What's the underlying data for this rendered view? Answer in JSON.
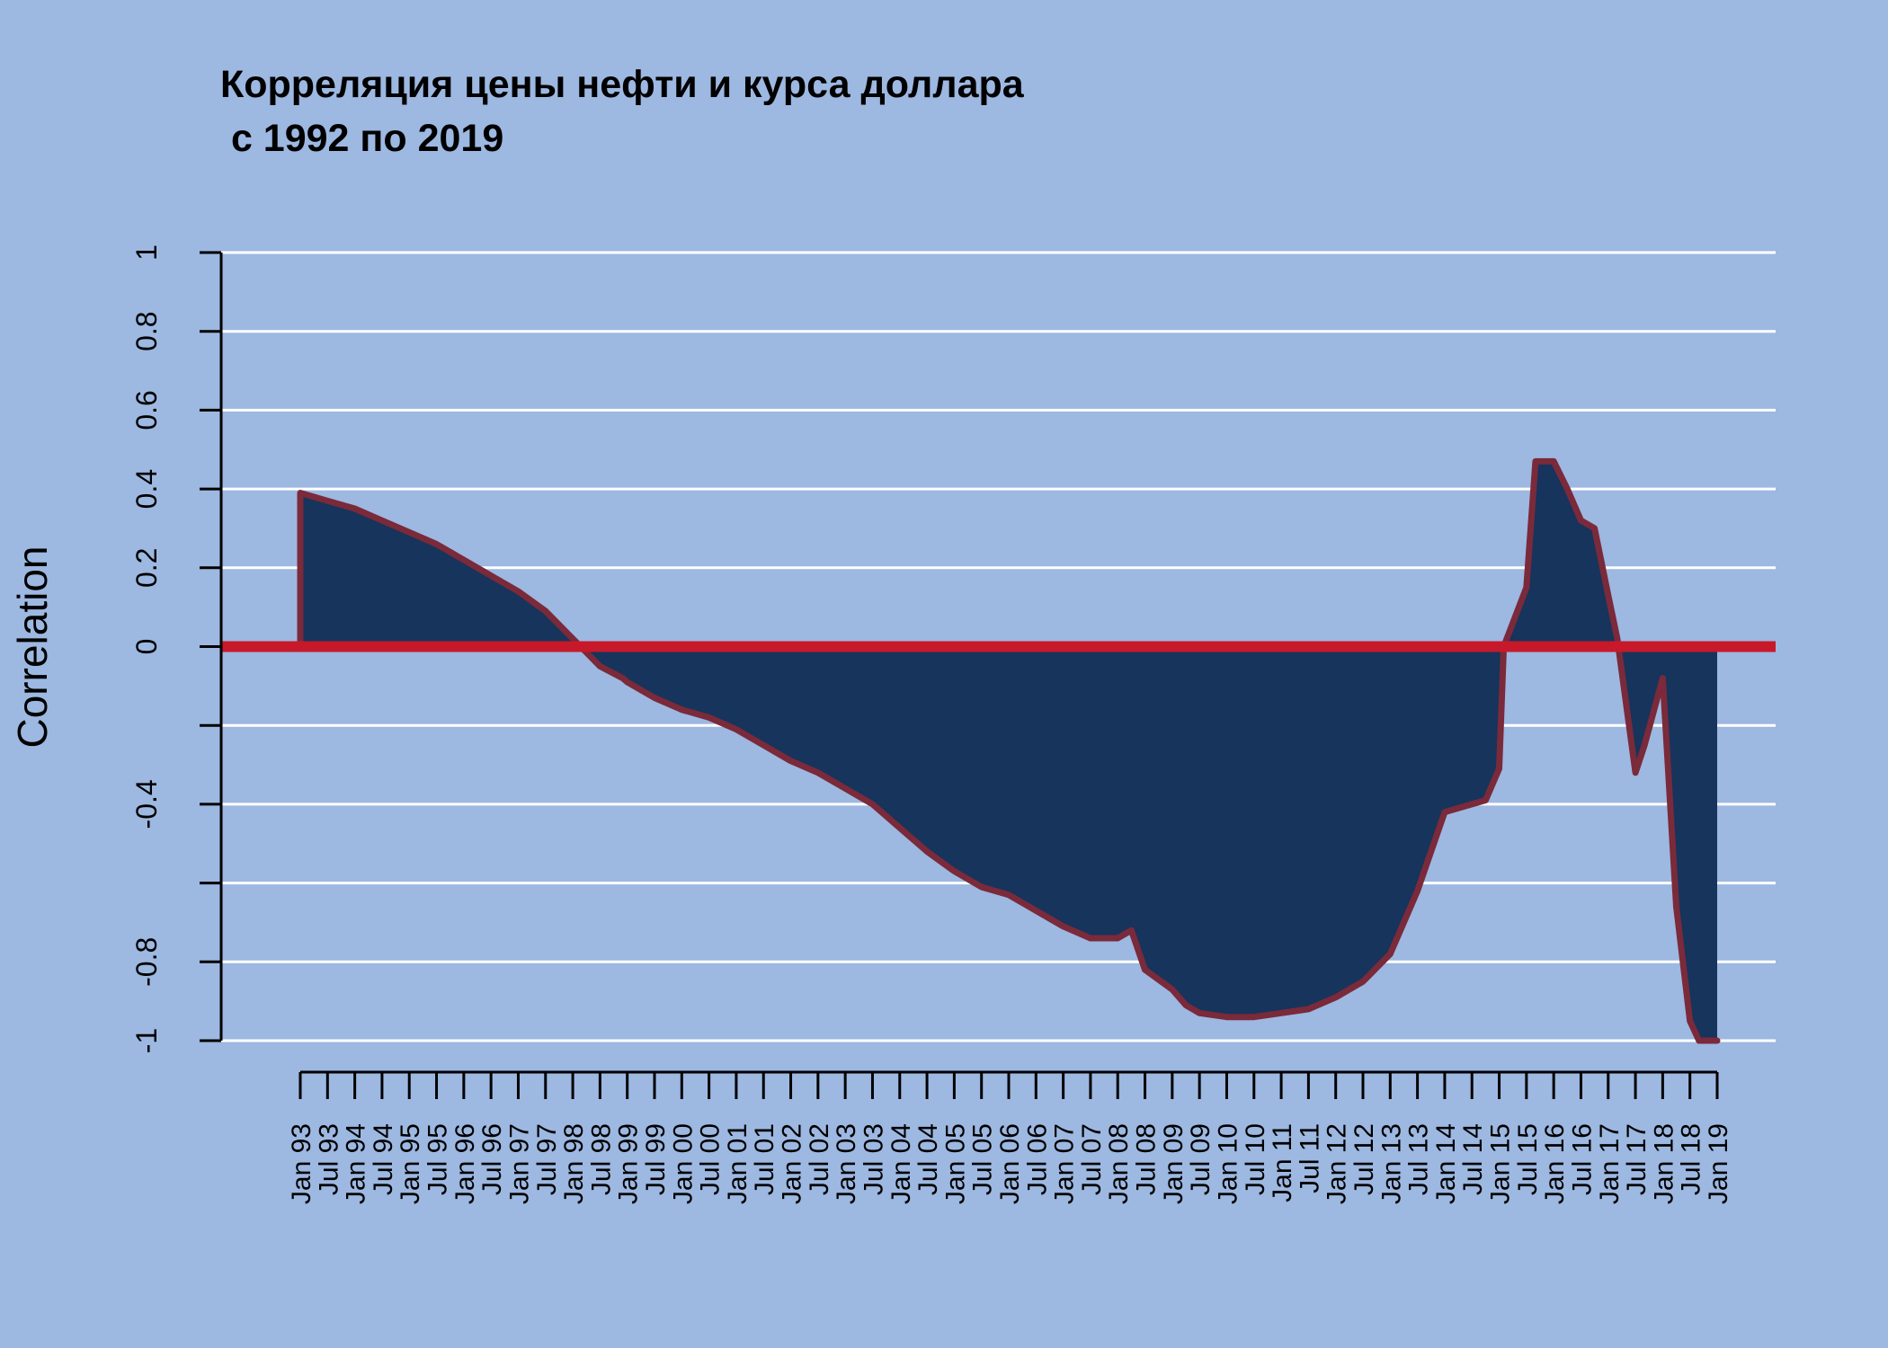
{
  "chart_data": {
    "type": "area",
    "title_lines": [
      "Корреляция цены нефти и курса доллара",
      " с 1992 по 2019"
    ],
    "xlabel": "",
    "ylabel": "Correlation",
    "ylim": [
      -1,
      1
    ],
    "y_tick_labels": [
      "-1",
      "-0.8",
      "",
      "-0.4",
      "",
      "0",
      "0.2",
      "0.4",
      "0.6",
      "0.8",
      "1"
    ],
    "y_tick_values": [
      -1,
      -0.8,
      -0.6,
      -0.4,
      -0.2,
      0,
      0.2,
      0.4,
      0.6,
      0.8,
      1
    ],
    "x_tick_labels": [
      "Jan 93",
      "Jul 93",
      "Jan 94",
      "Jul 94",
      "Jan 95",
      "Jul 95",
      "Jan 96",
      "Jul 96",
      "Jan 97",
      "Jul 97",
      "Jan 98",
      "Jul 98",
      "Jan 99",
      "Jul 99",
      "Jan 00",
      "Jul 00",
      "Jan 01",
      "Jul 01",
      "Jan 02",
      "Jul 02",
      "Jan 03",
      "Jul 03",
      "Jan 04",
      "Jul 04",
      "Jan 05",
      "Jul 05",
      "Jan 06",
      "Jul 06",
      "Jan 07",
      "Jul 07",
      "Jan 08",
      "Jul 08",
      "Jan 09",
      "Jul 09",
      "Jan 10",
      "Jul 10",
      "Jan 11",
      "Jul 11",
      "Jan 12",
      "Jul 12",
      "Jan 13",
      "Jul 13",
      "Jan 14",
      "Jul 14",
      "Jan 15",
      "Jul 15",
      "Jan 16",
      "Jul 16",
      "Jan 17",
      "Jul 17",
      "Jan 18",
      "Jul 18",
      "Jan 19"
    ],
    "x_range": [
      "1993-01",
      "2019-01"
    ],
    "grid": true,
    "reference_line": 0,
    "colors": {
      "background": "#9db8e1",
      "fill": "#16345c",
      "line": "#7a2a3a",
      "zero_line": "#c8192b",
      "grid": "#ffffff",
      "axis": "#000000"
    },
    "series": [
      {
        "x": [
          "1993-01",
          "1993-07",
          "1994-01",
          "1994-07",
          "1995-01",
          "1995-07",
          "1996-01",
          "1996-07",
          "1997-01",
          "1997-07",
          "1998-01",
          "1998-07",
          "1998-12",
          "1999-01",
          "1999-07",
          "2000-01",
          "2000-07",
          "2001-01",
          "2001-07",
          "2002-01",
          "2002-07",
          "2003-01",
          "2003-07",
          "2004-01",
          "2004-07",
          "2005-01",
          "2005-07",
          "2006-01",
          "2006-07",
          "2007-01",
          "2007-07",
          "2008-01",
          "2008-04",
          "2008-07",
          "2009-01",
          "2009-04",
          "2009-07",
          "2010-01",
          "2010-07",
          "2011-01",
          "2011-07",
          "2012-01",
          "2012-07",
          "2013-01",
          "2013-07",
          "2014-01",
          "2014-07",
          "2014-10",
          "2015-01",
          "2015-02",
          "2015-07",
          "2015-09",
          "2016-01",
          "2016-04",
          "2016-07",
          "2016-10",
          "2017-01",
          "2017-03",
          "2017-07",
          "2017-09",
          "2018-01",
          "2018-04",
          "2018-07",
          "2018-09",
          "2018-12",
          "2019-01"
        ],
        "y": [
          0.39,
          0.37,
          0.35,
          0.32,
          0.29,
          0.26,
          0.22,
          0.18,
          0.14,
          0.09,
          0.02,
          -0.05,
          -0.08,
          -0.09,
          -0.13,
          -0.16,
          -0.18,
          -0.21,
          -0.25,
          -0.29,
          -0.32,
          -0.36,
          -0.4,
          -0.46,
          -0.52,
          -0.57,
          -0.61,
          -0.63,
          -0.67,
          -0.71,
          -0.74,
          -0.74,
          -0.72,
          -0.82,
          -0.87,
          -0.91,
          -0.93,
          -0.94,
          -0.94,
          -0.93,
          -0.92,
          -0.89,
          -0.85,
          -0.78,
          -0.62,
          -0.42,
          -0.4,
          -0.39,
          -0.31,
          0.0,
          0.15,
          0.47,
          0.47,
          0.4,
          0.32,
          0.3,
          0.13,
          0.02,
          -0.32,
          -0.25,
          -0.08,
          -0.66,
          -0.95,
          -1.0,
          -1.0,
          -1.0
        ]
      }
    ]
  }
}
